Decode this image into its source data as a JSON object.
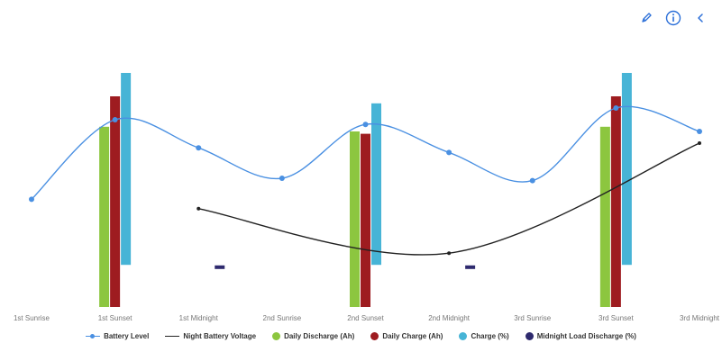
{
  "toolbar": {
    "icons": [
      "pencil-icon",
      "info-circle-icon",
      "chevron-left-icon"
    ],
    "color": "#2a6ed8"
  },
  "chart_data": {
    "type": "bar",
    "title": "",
    "xlabel": "",
    "ylabel": "",
    "categories": [
      "1st Sunrise",
      "1st Sunset",
      "1st Midnight",
      "2nd Sunrise",
      "2nd Sunset",
      "2nd Midnight",
      "3rd Sunrise",
      "3rd Sunset",
      "3rd Midnight"
    ],
    "ylim": [
      0,
      110
    ],
    "grid": false,
    "legend_position": "bottom",
    "series": [
      {
        "name": "Battery Level",
        "type": "line",
        "marker": "circle",
        "color": "#4a90e2",
        "values": [
          46,
          80,
          68,
          55,
          78,
          66,
          54,
          85,
          75
        ]
      },
      {
        "name": "Night Battery Voltage",
        "type": "line",
        "marker": "cross",
        "color": "#222222",
        "values": [
          null,
          null,
          42,
          null,
          null,
          23,
          null,
          null,
          70
        ]
      },
      {
        "name": "Daily Discharge (Ah)",
        "type": "bar",
        "color": "#8cc63f",
        "values": [
          null,
          77,
          null,
          null,
          75,
          null,
          null,
          77,
          null
        ]
      },
      {
        "name": "Daily Charge (Ah)",
        "type": "bar",
        "color": "#9e1c20",
        "values": [
          null,
          90,
          null,
          null,
          74,
          null,
          null,
          90,
          null
        ]
      },
      {
        "name": "Charge (%)",
        "type": "floating_bar",
        "color": "#47b4d6",
        "values": [
          null,
          [
            18,
            100
          ],
          null,
          null,
          [
            18,
            87
          ],
          null,
          null,
          [
            18,
            100
          ],
          null
        ]
      },
      {
        "name": "Midnight Load Discharge (%)",
        "type": "marker",
        "color": "#2e2a6e",
        "values": [
          null,
          null,
          17,
          null,
          null,
          17,
          null,
          null,
          null
        ]
      }
    ]
  }
}
